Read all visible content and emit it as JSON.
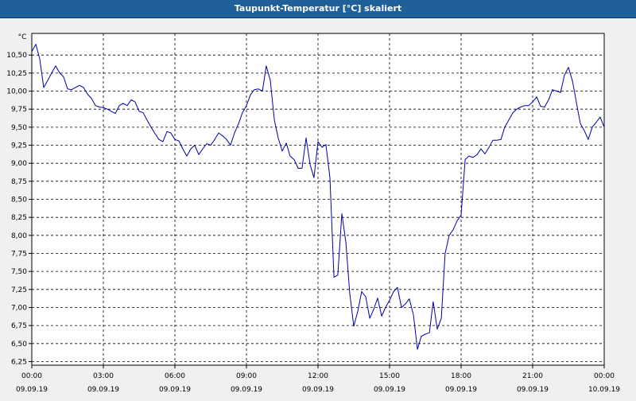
{
  "window": {
    "title": "Taupunkt-Temperatur [°C] skaliert"
  },
  "chart_data": {
    "type": "line",
    "title": "Taupunkt-Temperatur [°C] skaliert",
    "ylabel": "°C",
    "xlabel": "",
    "ylim": [
      6.2,
      10.8
    ],
    "xlim": [
      0,
      24
    ],
    "grid": true,
    "line_color": "#0000aa",
    "y_ticks": [
      6.25,
      6.5,
      6.75,
      7.0,
      7.25,
      7.5,
      7.75,
      8.0,
      8.25,
      8.5,
      8.75,
      9.0,
      9.25,
      9.5,
      9.75,
      10.0,
      10.25,
      10.5
    ],
    "y_tick_labels": [
      "6,25",
      "6,50",
      "6,75",
      "7,00",
      "7,25",
      "7,50",
      "7,75",
      "8,00",
      "8,25",
      "8,50",
      "8,75",
      "9,00",
      "9,25",
      "9,50",
      "9,75",
      "10,00",
      "10,25",
      "10,50"
    ],
    "x_ticks": [
      {
        "hour": 0,
        "time": "00:00",
        "date": "09.09.19"
      },
      {
        "hour": 3,
        "time": "03:00",
        "date": "09.09.19"
      },
      {
        "hour": 6,
        "time": "06:00",
        "date": "09.09.19"
      },
      {
        "hour": 9,
        "time": "09:00",
        "date": "09.09.19"
      },
      {
        "hour": 12,
        "time": "12:00",
        "date": "09.09.19"
      },
      {
        "hour": 15,
        "time": "15:00",
        "date": "09.09.19"
      },
      {
        "hour": 18,
        "time": "18:00",
        "date": "09.09.19"
      },
      {
        "hour": 21,
        "time": "21:00",
        "date": "09.09.19"
      },
      {
        "hour": 24,
        "time": "00:00",
        "date": "10.09.19"
      }
    ],
    "series": [
      {
        "x": [
          0.0,
          0.17,
          0.33,
          0.5,
          0.67,
          0.83,
          1.0,
          1.17,
          1.33,
          1.5,
          1.67,
          1.83,
          2.0,
          2.17,
          2.33,
          2.5,
          2.67,
          2.83,
          3.0,
          3.17,
          3.33,
          3.5,
          3.67,
          3.83,
          4.0,
          4.17,
          4.33,
          4.5,
          4.67,
          4.83,
          5.0,
          5.17,
          5.33,
          5.5,
          5.67,
          5.83,
          6.0,
          6.17,
          6.33,
          6.5,
          6.67,
          6.83,
          7.0,
          7.17,
          7.33,
          7.5,
          7.67,
          7.83,
          8.0,
          8.17,
          8.33,
          8.5,
          8.67,
          8.83,
          9.0,
          9.17,
          9.33,
          9.5,
          9.67,
          9.83,
          10.0,
          10.17,
          10.33,
          10.5,
          10.67,
          10.83,
          11.0,
          11.17,
          11.33,
          11.5,
          11.67,
          11.83,
          12.0,
          12.17,
          12.33,
          12.5,
          12.67,
          12.83,
          13.0,
          13.17,
          13.33,
          13.5,
          13.67,
          13.83,
          14.0,
          14.17,
          14.33,
          14.5,
          14.67,
          14.83,
          15.0,
          15.17,
          15.33,
          15.5,
          15.67,
          15.83,
          16.0,
          16.17,
          16.33,
          16.5,
          16.67,
          16.83,
          17.0,
          17.17,
          17.33,
          17.5,
          17.67,
          17.83,
          18.0,
          18.17,
          18.33,
          18.5,
          18.67,
          18.83,
          19.0,
          19.17,
          19.33,
          19.5,
          19.67,
          19.83,
          20.0,
          20.17,
          20.33,
          20.5,
          20.67,
          20.83,
          21.0,
          21.17,
          21.33,
          21.5,
          21.67,
          21.83,
          22.0,
          22.17,
          22.33,
          22.5,
          22.67,
          22.83,
          23.0,
          23.17,
          23.33,
          23.5,
          23.67,
          23.83,
          24.0
        ],
        "values": [
          10.55,
          10.65,
          10.45,
          10.05,
          10.15,
          10.25,
          10.35,
          10.25,
          10.2,
          10.03,
          10.02,
          10.05,
          10.08,
          10.05,
          9.96,
          9.9,
          9.8,
          9.78,
          9.77,
          9.75,
          9.72,
          9.69,
          9.8,
          9.83,
          9.8,
          9.88,
          9.85,
          9.72,
          9.7,
          9.6,
          9.5,
          9.41,
          9.33,
          9.3,
          9.44,
          9.42,
          9.33,
          9.31,
          9.2,
          9.1,
          9.2,
          9.25,
          9.12,
          9.2,
          9.27,
          9.25,
          9.33,
          9.42,
          9.38,
          9.33,
          9.25,
          9.42,
          9.55,
          9.7,
          9.8,
          9.95,
          10.02,
          10.03,
          10.0,
          10.35,
          10.15,
          9.6,
          9.35,
          9.17,
          9.28,
          9.1,
          9.05,
          8.93,
          8.93,
          9.35,
          8.98,
          8.8,
          9.3,
          9.22,
          9.26,
          8.8,
          7.42,
          7.45,
          8.3,
          7.9,
          7.2,
          6.74,
          6.95,
          7.22,
          7.15,
          6.85,
          6.97,
          7.13,
          6.88,
          7.0,
          7.1,
          7.22,
          7.28,
          7.0,
          7.05,
          7.12,
          6.9,
          6.42,
          6.6,
          6.63,
          6.65,
          7.08,
          6.7,
          6.85,
          7.75,
          8.0,
          8.08,
          8.2,
          8.28,
          9.05,
          9.1,
          9.08,
          9.12,
          9.2,
          9.13,
          9.22,
          9.32,
          9.32,
          9.33,
          9.5,
          9.6,
          9.7,
          9.75,
          9.78,
          9.8,
          9.8,
          9.85,
          9.92,
          9.79,
          9.78,
          9.88,
          10.02,
          10.0,
          9.98,
          10.22,
          10.33,
          10.14,
          9.85,
          9.55,
          9.45,
          9.33,
          9.5,
          9.57,
          9.64,
          9.5
        ]
      }
    ]
  }
}
